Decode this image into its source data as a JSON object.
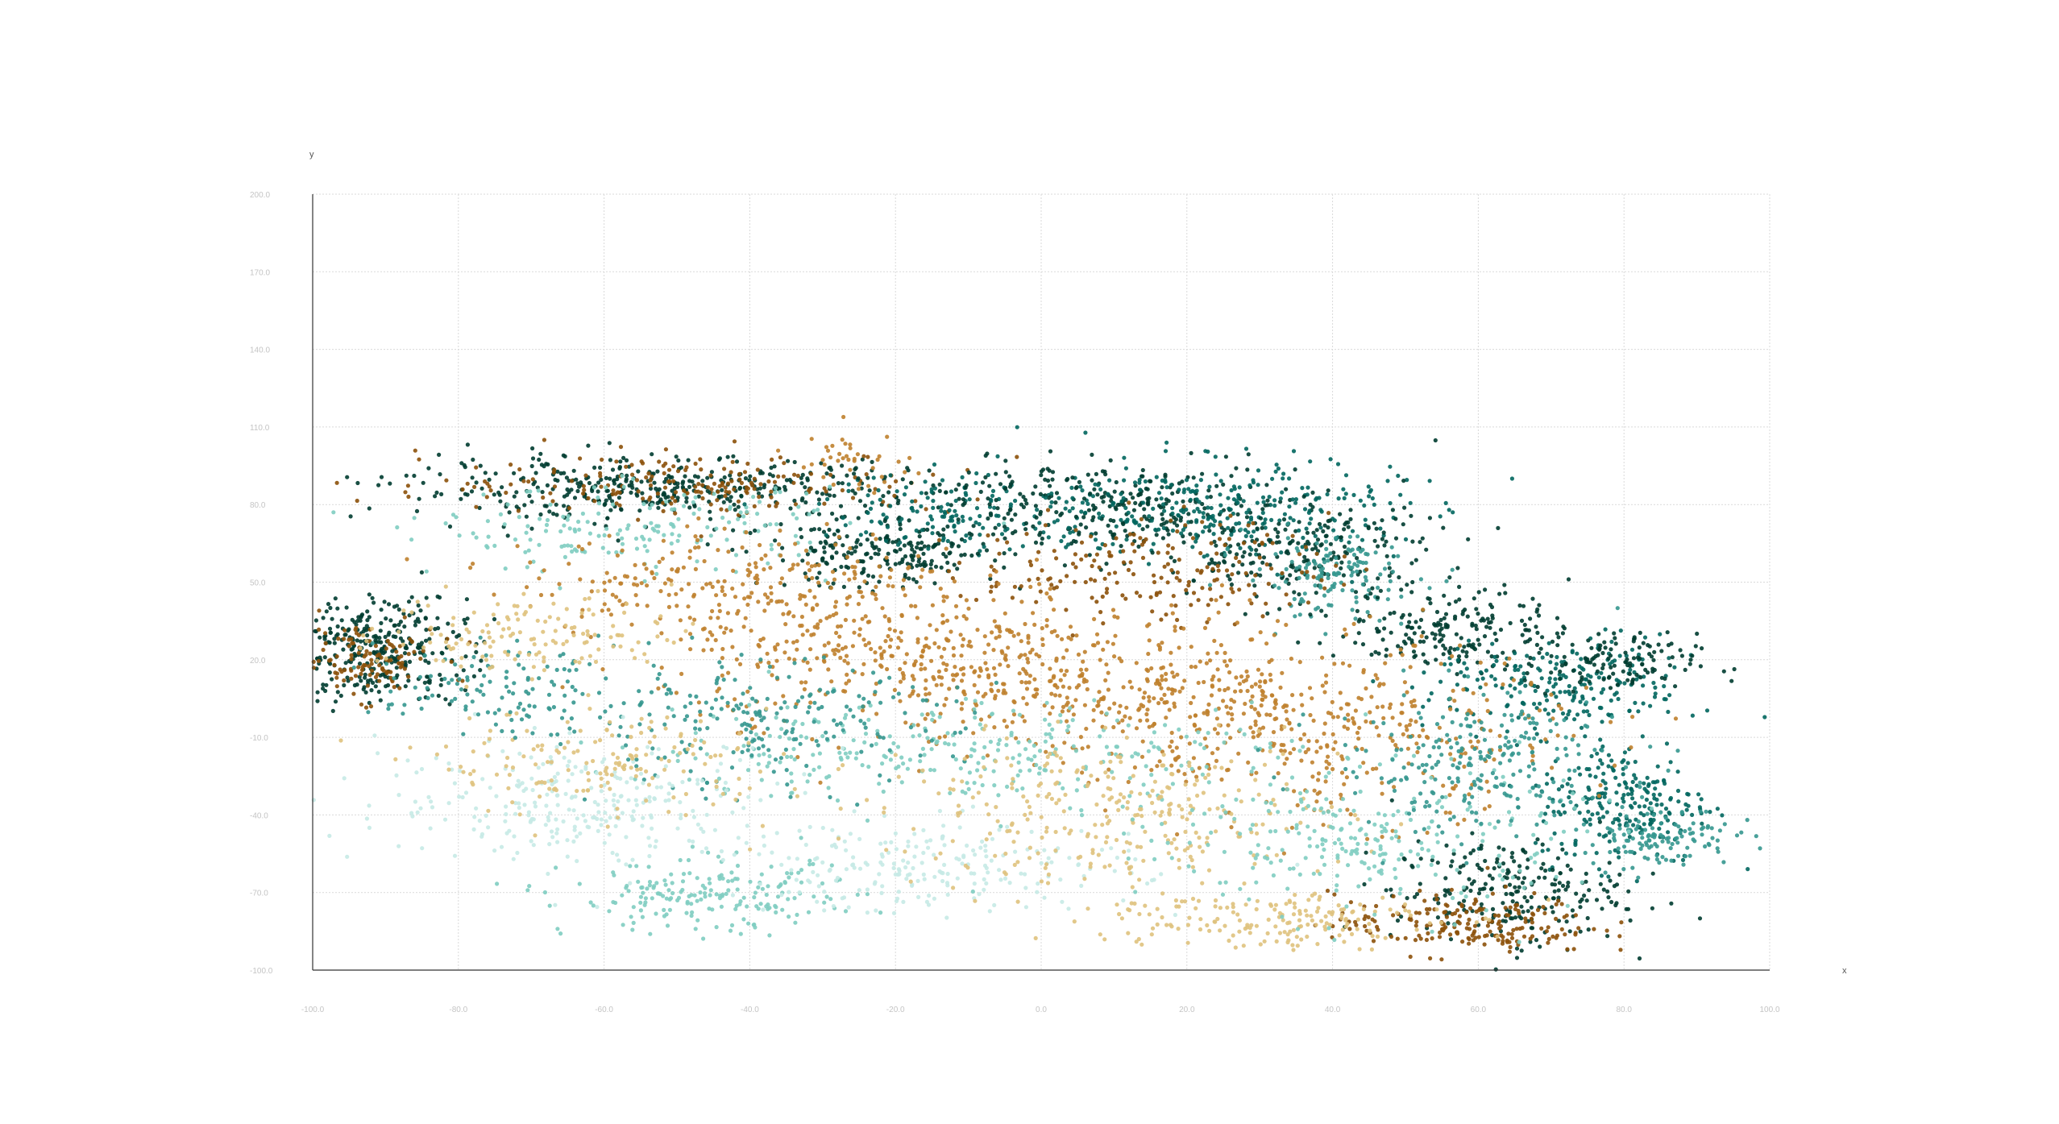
{
  "chart_data": {
    "type": "scatter",
    "title": "",
    "xlabel": "x",
    "ylabel": "y",
    "xlim": [
      -100,
      100
    ],
    "ylim": [
      -100,
      200
    ],
    "x_ticks": [
      -100,
      -80,
      -60,
      -40,
      -20,
      0,
      20,
      40,
      60,
      80,
      100
    ],
    "y_ticks": [
      -100,
      -70,
      -40,
      -10,
      20,
      50,
      80,
      110,
      140,
      170,
      200
    ],
    "x_tick_labels": [
      "-100.0",
      "-80.0",
      "-60.0",
      "-40.0",
      "-20.0",
      "0.0",
      "20.0",
      "40.0",
      "60.0",
      "80.0",
      "100.0"
    ],
    "y_tick_labels": [
      "-100.0",
      "-70.0",
      "-40.0",
      "-10.0",
      "20.0",
      "50.0",
      "80.0",
      "110.0",
      "140.0",
      "170.0",
      "200.0"
    ],
    "grid": true,
    "legend": "none",
    "color_scale": [
      "#543005",
      "#8c510a",
      "#bf812d",
      "#dfc27d",
      "#c7eae5",
      "#80cdc1",
      "#35978f",
      "#01665e",
      "#003c30"
    ],
    "clusters": [
      {
        "x": -91,
        "y": 24,
        "spread_x": 6,
        "spread_y": 10,
        "count": 320,
        "color": "#003c30"
      },
      {
        "x": -93,
        "y": 20,
        "spread_x": 5,
        "spread_y": 7,
        "count": 120,
        "color": "#8c510a"
      },
      {
        "x": -52,
        "y": 86,
        "spread_x": 18,
        "spread_y": 6,
        "count": 420,
        "color": "#003c30"
      },
      {
        "x": -48,
        "y": 88,
        "spread_x": 18,
        "spread_y": 6,
        "count": 200,
        "color": "#8c510a"
      },
      {
        "x": -55,
        "y": 70,
        "spread_x": 14,
        "spread_y": 8,
        "count": 180,
        "color": "#80cdc1"
      },
      {
        "x": -26,
        "y": 97,
        "spread_x": 4,
        "spread_y": 6,
        "count": 40,
        "color": "#bf812d"
      },
      {
        "x": -22,
        "y": 60,
        "spread_x": 8,
        "spread_y": 6,
        "count": 200,
        "color": "#003c30"
      },
      {
        "x": -10,
        "y": 78,
        "spread_x": 10,
        "spread_y": 8,
        "count": 160,
        "color": "#01665e"
      },
      {
        "x": 8,
        "y": 80,
        "spread_x": 14,
        "spread_y": 8,
        "count": 300,
        "color": "#003c30"
      },
      {
        "x": 25,
        "y": 78,
        "spread_x": 12,
        "spread_y": 10,
        "count": 300,
        "color": "#01665e"
      },
      {
        "x": 35,
        "y": 62,
        "spread_x": 10,
        "spread_y": 10,
        "count": 220,
        "color": "#003c30"
      },
      {
        "x": 40,
        "y": 52,
        "spread_x": 6,
        "spread_y": 8,
        "count": 140,
        "color": "#35978f"
      },
      {
        "x": 15,
        "y": 55,
        "spread_x": 12,
        "spread_y": 10,
        "count": 200,
        "color": "#8c510a"
      },
      {
        "x": 57,
        "y": 32,
        "spread_x": 8,
        "spread_y": 8,
        "count": 200,
        "color": "#003c30"
      },
      {
        "x": 72,
        "y": 10,
        "spread_x": 9,
        "spread_y": 9,
        "count": 220,
        "color": "#01665e"
      },
      {
        "x": 78,
        "y": 18,
        "spread_x": 6,
        "spread_y": 6,
        "count": 120,
        "color": "#003c30"
      },
      {
        "x": 80,
        "y": -35,
        "spread_x": 6,
        "spread_y": 12,
        "count": 240,
        "color": "#01665e"
      },
      {
        "x": 85,
        "y": -48,
        "spread_x": 5,
        "spread_y": 6,
        "count": 120,
        "color": "#35978f"
      },
      {
        "x": 64,
        "y": -70,
        "spread_x": 8,
        "spread_y": 10,
        "count": 240,
        "color": "#003c30"
      },
      {
        "x": 58,
        "y": -82,
        "spread_x": 9,
        "spread_y": 6,
        "count": 200,
        "color": "#8c510a"
      },
      {
        "x": -40,
        "y": 50,
        "spread_x": 16,
        "spread_y": 10,
        "count": 260,
        "color": "#bf812d"
      },
      {
        "x": -20,
        "y": 20,
        "spread_x": 16,
        "spread_y": 12,
        "count": 320,
        "color": "#bf812d"
      },
      {
        "x": 10,
        "y": 10,
        "spread_x": 18,
        "spread_y": 14,
        "count": 380,
        "color": "#bf812d"
      },
      {
        "x": 40,
        "y": -10,
        "spread_x": 16,
        "spread_y": 16,
        "count": 360,
        "color": "#bf812d"
      },
      {
        "x": -10,
        "y": -15,
        "spread_x": 22,
        "spread_y": 10,
        "count": 300,
        "color": "#80cdc1"
      },
      {
        "x": -40,
        "y": -5,
        "spread_x": 14,
        "spread_y": 12,
        "count": 220,
        "color": "#35978f"
      },
      {
        "x": -62,
        "y": -35,
        "spread_x": 14,
        "spread_y": 12,
        "count": 280,
        "color": "#c7eae5"
      },
      {
        "x": -60,
        "y": -20,
        "spread_x": 12,
        "spread_y": 10,
        "count": 160,
        "color": "#dfc27d"
      },
      {
        "x": -45,
        "y": -72,
        "spread_x": 10,
        "spread_y": 7,
        "count": 200,
        "color": "#80cdc1"
      },
      {
        "x": -15,
        "y": -60,
        "spread_x": 14,
        "spread_y": 9,
        "count": 220,
        "color": "#c7eae5"
      },
      {
        "x": 10,
        "y": -40,
        "spread_x": 16,
        "spread_y": 14,
        "count": 300,
        "color": "#dfc27d"
      },
      {
        "x": 30,
        "y": -80,
        "spread_x": 12,
        "spread_y": 6,
        "count": 180,
        "color": "#dfc27d"
      },
      {
        "x": 45,
        "y": -50,
        "spread_x": 14,
        "spread_y": 14,
        "count": 260,
        "color": "#80cdc1"
      },
      {
        "x": 60,
        "y": -20,
        "spread_x": 10,
        "spread_y": 14,
        "count": 240,
        "color": "#35978f"
      },
      {
        "x": -75,
        "y": 8,
        "spread_x": 8,
        "spread_y": 8,
        "count": 120,
        "color": "#35978f"
      },
      {
        "x": -70,
        "y": 30,
        "spread_x": 10,
        "spread_y": 8,
        "count": 140,
        "color": "#dfc27d"
      }
    ]
  }
}
